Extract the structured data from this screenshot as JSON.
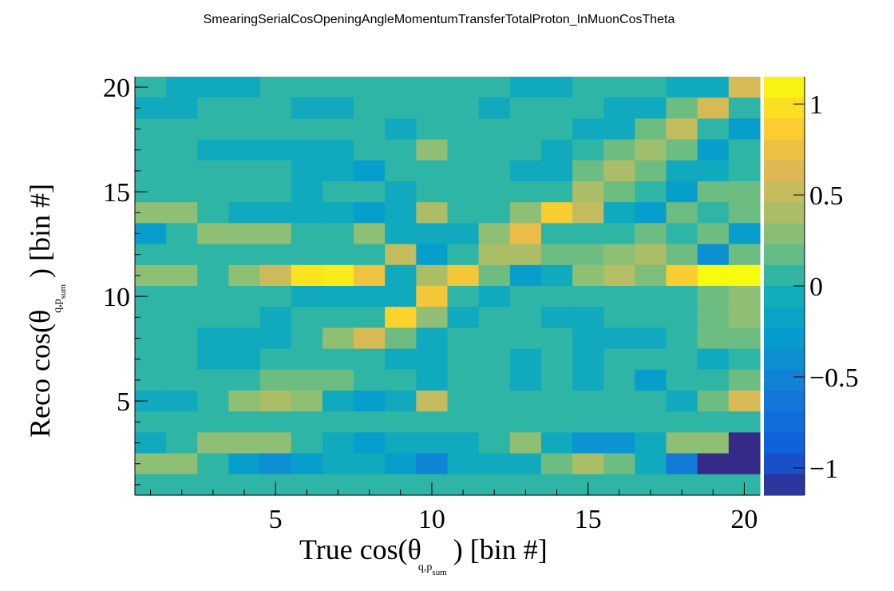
{
  "title": "SmearingSerialCosOpeningAngleMomentumTransferTotalProton_InMuonCosTheta",
  "chart_data": {
    "type": "heatmap",
    "title": "SmearingSerialCosOpeningAngleMomentumTransferTotalProton_InMuonCosTheta",
    "xlabel": "True cos(θ q,p_sum) [bin #]",
    "ylabel": "Reco cos(θ q,p_sum) [bin #]",
    "xlabel_parts": {
      "main": "True cos(θ",
      "sub": "q,p",
      "subsub": "sum",
      "tail": ") [bin #]"
    },
    "ylabel_parts": {
      "main": "Reco cos(θ",
      "sub": "q,p",
      "subsub": "sum",
      "tail": ") [bin #]"
    },
    "x_bins": 20,
    "y_bins": 20,
    "xlim": [
      0.5,
      20.5
    ],
    "ylim": [
      0.5,
      20.5
    ],
    "x_ticks": [
      5,
      10,
      15,
      20
    ],
    "y_ticks": [
      5,
      10,
      15,
      20
    ],
    "colorbar": {
      "range": [
        -1.15,
        1.15
      ],
      "ticks": [
        1,
        0.5,
        0,
        -0.5,
        -1
      ],
      "tick_labels": [
        "1",
        "0.5",
        "0",
        "−0.5",
        "−1"
      ]
    },
    "values_rows_top_to_bottom": [
      [
        0.05,
        -0.1,
        -0.1,
        -0.1,
        0.05,
        0.05,
        0.05,
        0.05,
        0.05,
        0.05,
        0.05,
        0.05,
        -0.1,
        -0.1,
        0.05,
        0.05,
        0.05,
        -0.1,
        -0.1,
        0.6
      ],
      [
        -0.1,
        -0.1,
        0.05,
        0.05,
        0.05,
        -0.1,
        -0.1,
        0.05,
        0.05,
        0.05,
        0.05,
        -0.1,
        0.05,
        0.05,
        0.05,
        -0.1,
        -0.1,
        0.2,
        0.6,
        0.05
      ],
      [
        0.05,
        0.05,
        0.05,
        0.05,
        0.05,
        0.05,
        0.05,
        0.05,
        -0.1,
        0.05,
        0.05,
        0.05,
        0.05,
        0.05,
        -0.1,
        -0.1,
        0.2,
        0.5,
        0.05,
        -0.25
      ],
      [
        0.05,
        0.05,
        -0.1,
        -0.1,
        -0.1,
        -0.1,
        -0.1,
        0.05,
        0.05,
        0.3,
        0.05,
        0.05,
        0.05,
        -0.1,
        0.05,
        0.2,
        0.35,
        0.2,
        -0.25,
        0.05
      ],
      [
        0.05,
        0.05,
        0.05,
        0.05,
        0.05,
        -0.1,
        -0.1,
        -0.25,
        0.05,
        0.05,
        0.05,
        0.05,
        -0.1,
        -0.1,
        0.2,
        0.4,
        0.2,
        -0.1,
        -0.1,
        0.05
      ],
      [
        0.05,
        0.05,
        0.05,
        0.05,
        0.05,
        -0.1,
        0.05,
        0.05,
        -0.1,
        0.05,
        0.05,
        0.05,
        0.05,
        0.05,
        0.4,
        0.2,
        0.05,
        -0.25,
        0.2,
        0.2
      ],
      [
        0.3,
        0.3,
        0.05,
        -0.1,
        -0.1,
        -0.1,
        -0.1,
        -0.25,
        -0.1,
        0.4,
        0.05,
        0.05,
        0.3,
        0.85,
        0.5,
        -0.1,
        -0.25,
        0.2,
        0.05,
        0.2
      ],
      [
        -0.25,
        0.05,
        0.3,
        0.3,
        0.3,
        0.05,
        0.05,
        0.3,
        -0.1,
        -0.1,
        -0.1,
        0.3,
        0.7,
        0.05,
        0.05,
        0.05,
        0.2,
        0.05,
        0.2,
        -0.25
      ],
      [
        0.05,
        0.05,
        0.05,
        0.05,
        0.05,
        0.05,
        0.05,
        0.05,
        0.5,
        -0.25,
        0.05,
        0.4,
        0.4,
        0.2,
        0.2,
        0.3,
        0.4,
        0.2,
        -0.4,
        0.2
      ],
      [
        0.3,
        0.3,
        0.05,
        0.3,
        0.55,
        1.0,
        1.05,
        0.75,
        -0.1,
        0.4,
        0.8,
        0.2,
        -0.25,
        -0.1,
        0.3,
        0.45,
        0.25,
        0.85,
        1.15,
        1.15
      ],
      [
        0.05,
        0.05,
        0.05,
        0.05,
        0.05,
        -0.1,
        -0.1,
        -0.1,
        -0.1,
        0.8,
        0.05,
        -0.1,
        0.05,
        0.05,
        0.05,
        0.05,
        0.05,
        0.05,
        0.2,
        0.3
      ],
      [
        0.05,
        0.05,
        0.05,
        0.05,
        -0.1,
        0.05,
        0.05,
        0.05,
        0.9,
        0.3,
        -0.1,
        0.05,
        0.05,
        -0.1,
        -0.1,
        0.05,
        0.05,
        0.05,
        0.2,
        0.3
      ],
      [
        0.05,
        0.05,
        -0.1,
        -0.1,
        -0.1,
        0.05,
        0.3,
        0.6,
        0.2,
        -0.1,
        0.05,
        0.05,
        0.05,
        0.05,
        -0.1,
        -0.1,
        -0.1,
        0.05,
        0.2,
        0.2
      ],
      [
        0.05,
        0.05,
        -0.1,
        -0.1,
        0.05,
        0.05,
        0.05,
        0.05,
        -0.1,
        -0.1,
        0.05,
        0.05,
        -0.1,
        0.05,
        -0.1,
        0.05,
        0.05,
        0.05,
        -0.1,
        0.05
      ],
      [
        0.05,
        0.05,
        0.05,
        0.05,
        0.2,
        0.2,
        0.2,
        0.05,
        0.05,
        -0.1,
        0.05,
        0.05,
        -0.1,
        0.05,
        -0.1,
        0.05,
        -0.25,
        0.05,
        0.05,
        0.2
      ],
      [
        -0.1,
        -0.1,
        0.05,
        0.3,
        0.4,
        0.3,
        -0.1,
        -0.25,
        -0.1,
        0.5,
        0.05,
        0.05,
        0.05,
        0.05,
        0.05,
        0.05,
        0.05,
        -0.1,
        0.2,
        0.6
      ],
      [
        0.05,
        0.05,
        0.05,
        0.05,
        0.05,
        0.05,
        0.05,
        0.05,
        0.05,
        0.05,
        0.05,
        0.05,
        0.05,
        0.05,
        0.05,
        0.05,
        0.05,
        0.05,
        0.05,
        0.05
      ],
      [
        -0.1,
        0.05,
        0.3,
        0.3,
        0.3,
        0.05,
        -0.1,
        -0.25,
        -0.1,
        -0.1,
        -0.1,
        0.05,
        0.3,
        -0.1,
        -0.35,
        -0.35,
        -0.1,
        0.3,
        0.3,
        -1.15
      ],
      [
        0.3,
        0.3,
        0.05,
        -0.25,
        -0.4,
        -0.25,
        -0.1,
        -0.1,
        -0.25,
        -0.5,
        -0.1,
        -0.1,
        -0.1,
        0.2,
        0.4,
        0.2,
        -0.1,
        -0.6,
        -1.15,
        -1.15
      ],
      [
        0.05,
        0.05,
        0.05,
        0.05,
        0.05,
        0.05,
        0.05,
        0.05,
        0.05,
        0.05,
        0.05,
        0.05,
        0.05,
        0.05,
        0.05,
        0.05,
        0.05,
        0.05,
        0.05,
        0.05
      ]
    ]
  }
}
